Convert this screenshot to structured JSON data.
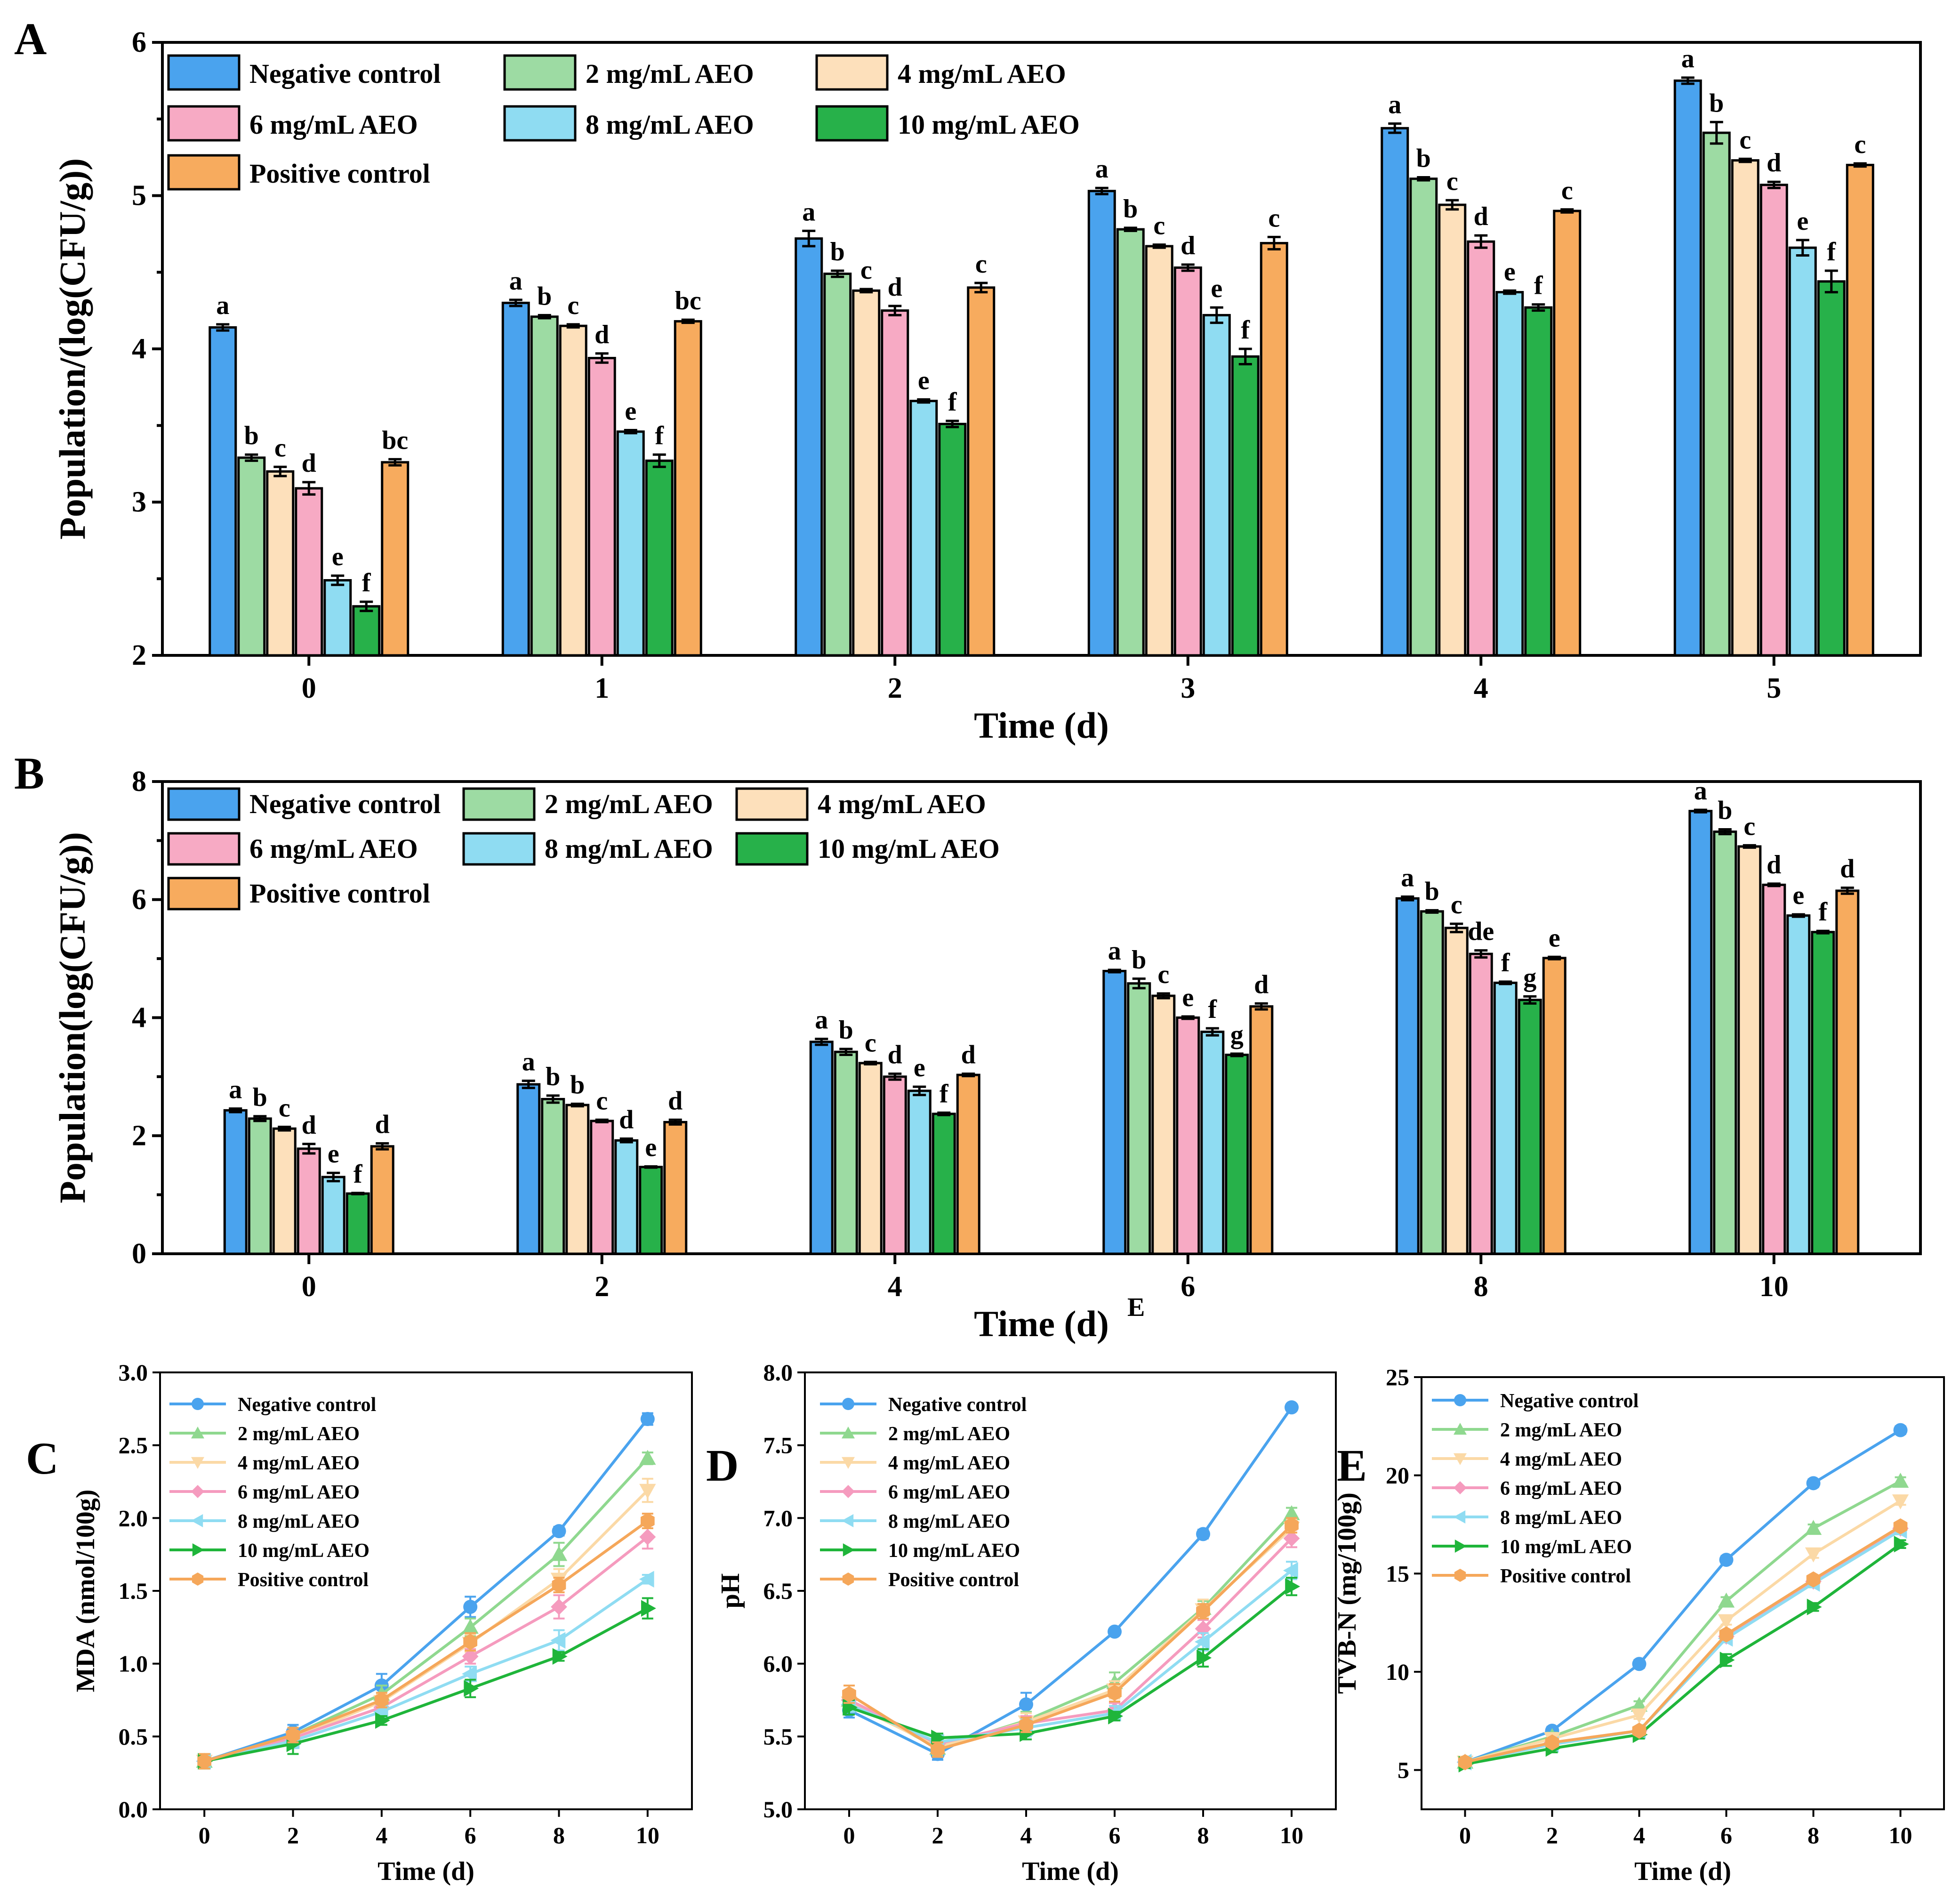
{
  "figure": {
    "panel_labels": [
      "A",
      "B",
      "C",
      "D",
      "E"
    ],
    "stray_label": "E"
  },
  "colors": {
    "Negative control": "#4aa3ee",
    "2 mg/mL AEO": "#9ddba3",
    "4 mg/mL AEO": "#fde0bb",
    "6 mg/mL AEO": "#f7aac4",
    "8 mg/mL AEO": "#8fdcf2",
    "10 mg/mL AEO": "#27b14a",
    "Positive control": "#f7ab5e"
  },
  "line_colors": {
    "Negative control": "#4aa3ee",
    "2 mg/mL AEO": "#8fd88f",
    "4 mg/mL AEO": "#fbd9a6",
    "6 mg/mL AEO": "#f59bbe",
    "8 mg/mL AEO": "#8fdcf2",
    "10 mg/mL AEO": "#1fb53a",
    "Positive control": "#f5a75a"
  },
  "chart_data": [
    {
      "id": "A",
      "type": "bar",
      "xlabel": "Time (d)",
      "ylabel": "Population/(log(CFU/g))",
      "ylim": [
        2,
        6
      ],
      "yticks": [
        "2",
        "3",
        "4",
        "5",
        "6"
      ],
      "categories": [
        "0",
        "1",
        "2",
        "3",
        "4",
        "5"
      ],
      "legend": [
        "Negative control",
        "2 mg/mL AEO",
        "4 mg/mL AEO",
        "6 mg/mL AEO",
        "8 mg/mL AEO",
        "10 mg/mL AEO",
        "Positive control"
      ],
      "series": [
        {
          "name": "Negative control",
          "values": [
            4.14,
            4.3,
            4.72,
            5.03,
            5.44,
            5.75
          ],
          "errors": [
            0.02,
            0.02,
            0.05,
            0.02,
            0.03,
            0.02
          ],
          "labels": [
            "a",
            "a",
            "a",
            "a",
            "a",
            "a"
          ]
        },
        {
          "name": "2 mg/mL AEO",
          "values": [
            3.29,
            4.21,
            4.49,
            4.78,
            5.11,
            5.41
          ],
          "errors": [
            0.02,
            0.01,
            0.02,
            0.01,
            0.01,
            0.07
          ],
          "labels": [
            "b",
            "b",
            "b",
            "b",
            "b",
            "b"
          ]
        },
        {
          "name": "4 mg/mL AEO",
          "values": [
            3.2,
            4.15,
            4.38,
            4.67,
            4.94,
            5.23
          ],
          "errors": [
            0.03,
            0.01,
            0.01,
            0.01,
            0.03,
            0.01
          ],
          "labels": [
            "c",
            "c",
            "c",
            "c",
            "c",
            "c"
          ]
        },
        {
          "name": "6 mg/mL AEO",
          "values": [
            3.09,
            3.94,
            4.25,
            4.53,
            4.7,
            5.07
          ],
          "errors": [
            0.04,
            0.03,
            0.03,
            0.02,
            0.04,
            0.02
          ],
          "labels": [
            "d",
            "d",
            "d",
            "d",
            "d",
            "d"
          ]
        },
        {
          "name": "8 mg/mL AEO",
          "values": [
            2.49,
            3.46,
            3.66,
            4.22,
            4.37,
            4.66
          ],
          "errors": [
            0.03,
            0.01,
            0.01,
            0.05,
            0.01,
            0.05
          ],
          "labels": [
            "e",
            "e",
            "e",
            "e",
            "e",
            "e"
          ]
        },
        {
          "name": "10 mg/mL AEO",
          "values": [
            2.32,
            3.27,
            3.51,
            3.95,
            4.27,
            4.44
          ],
          "errors": [
            0.03,
            0.04,
            0.02,
            0.05,
            0.02,
            0.07
          ],
          "labels": [
            "f",
            "f",
            "f",
            "f",
            "f",
            "f"
          ]
        },
        {
          "name": "Positive control",
          "values": [
            3.26,
            4.18,
            4.4,
            4.69,
            4.9,
            5.2
          ],
          "errors": [
            0.02,
            0.01,
            0.03,
            0.04,
            0.01,
            0.01
          ],
          "labels": [
            "bc",
            "bc",
            "c",
            "c",
            "c",
            "c"
          ]
        }
      ]
    },
    {
      "id": "B",
      "type": "bar",
      "xlabel": "Time (d)",
      "ylabel": "Population(log(CFU/g))",
      "ylim": [
        0,
        8
      ],
      "yticks": [
        "0",
        "2",
        "4",
        "6",
        "8"
      ],
      "categories": [
        "0",
        "2",
        "4",
        "6",
        "8",
        "10"
      ],
      "legend": [
        "Negative control",
        "2 mg/mL AEO",
        "4 mg/mL AEO",
        "6 mg/mL AEO",
        "8 mg/mL AEO",
        "10 mg/mL AEO",
        "Positive control"
      ],
      "series": [
        {
          "name": "Negative control",
          "values": [
            2.43,
            2.87,
            3.59,
            4.79,
            6.02,
            7.5
          ],
          "errors": [
            0.03,
            0.06,
            0.05,
            0.02,
            0.03,
            0.02
          ],
          "labels": [
            "a",
            "a",
            "a",
            "a",
            "a",
            "a"
          ]
        },
        {
          "name": "2 mg/mL AEO",
          "values": [
            2.29,
            2.62,
            3.42,
            4.58,
            5.8,
            7.15
          ],
          "errors": [
            0.04,
            0.06,
            0.05,
            0.08,
            0.02,
            0.04
          ],
          "labels": [
            "b",
            "b",
            "b",
            "b",
            "b",
            "b"
          ]
        },
        {
          "name": "4 mg/mL AEO",
          "values": [
            2.12,
            2.52,
            3.23,
            4.37,
            5.52,
            6.9
          ],
          "errors": [
            0.03,
            0.02,
            0.02,
            0.04,
            0.07,
            0.02
          ],
          "labels": [
            "c",
            "b",
            "c",
            "c",
            "c",
            "c"
          ]
        },
        {
          "name": "6 mg/mL AEO",
          "values": [
            1.78,
            2.25,
            3.0,
            4.0,
            5.08,
            6.25
          ],
          "errors": [
            0.08,
            0.02,
            0.05,
            0.02,
            0.06,
            0.02
          ],
          "labels": [
            "d",
            "c",
            "d",
            "e",
            "de",
            "d"
          ]
        },
        {
          "name": "8 mg/mL AEO",
          "values": [
            1.3,
            1.92,
            2.76,
            3.76,
            4.59,
            5.73
          ],
          "errors": [
            0.07,
            0.03,
            0.07,
            0.06,
            0.02,
            0.02
          ],
          "labels": [
            "e",
            "d",
            "e",
            "f",
            "f",
            "e"
          ]
        },
        {
          "name": "10 mg/mL AEO",
          "values": [
            1.02,
            1.47,
            2.37,
            3.37,
            4.3,
            5.45
          ],
          "errors": [
            0.01,
            0.01,
            0.02,
            0.02,
            0.06,
            0.02
          ],
          "labels": [
            "f",
            "e",
            "f",
            "g",
            "g",
            "f"
          ]
        },
        {
          "name": "Positive control",
          "values": [
            1.82,
            2.23,
            3.03,
            4.19,
            5.01,
            6.15
          ],
          "errors": [
            0.05,
            0.04,
            0.02,
            0.05,
            0.02,
            0.05
          ],
          "labels": [
            "d",
            "d",
            "d",
            "d",
            "e",
            "d"
          ]
        }
      ]
    },
    {
      "id": "C",
      "type": "line",
      "xlabel": "Time (d)",
      "ylabel": "MDA (nmol/100g)",
      "ylim": [
        0.0,
        3.0
      ],
      "yticks": [
        "0.0",
        "0.5",
        "1.0",
        "1.5",
        "2.0",
        "2.5",
        "3.0"
      ],
      "xlim": [
        -1,
        11
      ],
      "xticks": [
        "0",
        "2",
        "4",
        "6",
        "8",
        "10"
      ],
      "x": [
        0,
        2,
        4,
        6,
        8,
        10
      ],
      "legend": [
        "Negative control",
        "2 mg/mL AEO",
        "4 mg/mL AEO",
        "6 mg/mL AEO",
        "8 mg/mL AEO",
        "10 mg/mL AEO",
        "Positive control"
      ],
      "series": [
        {
          "name": "Negative control",
          "marker": "circle",
          "values": [
            0.33,
            0.53,
            0.85,
            1.39,
            1.91,
            2.68
          ],
          "errors": [
            0.05,
            0.05,
            0.08,
            0.07,
            0.03,
            0.04
          ]
        },
        {
          "name": "2 mg/mL AEO",
          "marker": "triangle-up",
          "values": [
            0.33,
            0.51,
            0.79,
            1.25,
            1.75,
            2.41
          ],
          "errors": [
            0.05,
            0.05,
            0.06,
            0.06,
            0.08,
            0.04
          ]
        },
        {
          "name": "4 mg/mL AEO",
          "marker": "triangle-down",
          "values": [
            0.33,
            0.49,
            0.74,
            1.14,
            1.58,
            2.19
          ],
          "errors": [
            0.05,
            0.05,
            0.05,
            0.06,
            0.07,
            0.08
          ]
        },
        {
          "name": "6 mg/mL AEO",
          "marker": "diamond",
          "values": [
            0.33,
            0.49,
            0.7,
            1.05,
            1.39,
            1.87
          ],
          "errors": [
            0.05,
            0.05,
            0.05,
            0.05,
            0.08,
            0.08
          ]
        },
        {
          "name": "8 mg/mL AEO",
          "marker": "triangle-left",
          "values": [
            0.33,
            0.47,
            0.67,
            0.93,
            1.16,
            1.58
          ],
          "errors": [
            0.05,
            0.05,
            0.05,
            0.05,
            0.07,
            0.03
          ]
        },
        {
          "name": "10 mg/mL AEO",
          "marker": "triangle-right",
          "values": [
            0.33,
            0.45,
            0.61,
            0.83,
            1.05,
            1.38
          ],
          "errors": [
            0.05,
            0.07,
            0.03,
            0.06,
            0.03,
            0.07
          ]
        },
        {
          "name": "Positive control",
          "marker": "hexagon",
          "values": [
            0.33,
            0.51,
            0.75,
            1.15,
            1.54,
            1.98
          ],
          "errors": [
            0.05,
            0.05,
            0.05,
            0.06,
            0.05,
            0.05
          ]
        }
      ]
    },
    {
      "id": "D",
      "type": "line",
      "xlabel": "Time (d)",
      "ylabel": "pH",
      "ylim": [
        5.0,
        8.0
      ],
      "yticks": [
        "5.0",
        "5.5",
        "6.0",
        "6.5",
        "7.0",
        "7.5",
        "8.0"
      ],
      "xlim": [
        -1,
        11
      ],
      "xticks": [
        "0",
        "2",
        "4",
        "6",
        "8",
        "10"
      ],
      "x": [
        0,
        2,
        4,
        6,
        8,
        10
      ],
      "legend": [
        "Negative control",
        "2 mg/mL AEO",
        "4 mg/mL AEO",
        "6 mg/mL AEO",
        "8 mg/mL AEO",
        "10 mg/mL AEO",
        "Positive control"
      ],
      "series": [
        {
          "name": "Negative control",
          "marker": "circle",
          "values": [
            5.68,
            5.38,
            5.72,
            6.22,
            6.89,
            7.76
          ],
          "errors": [
            0.05,
            0.04,
            0.08,
            0.02,
            0.03,
            0.02
          ]
        },
        {
          "name": "2 mg/mL AEO",
          "marker": "triangle-up",
          "values": [
            5.75,
            5.42,
            5.61,
            5.87,
            6.38,
            7.03
          ],
          "errors": [
            0.06,
            0.05,
            0.06,
            0.07,
            0.05,
            0.04
          ]
        },
        {
          "name": "4 mg/mL AEO",
          "marker": "triangle-down",
          "values": [
            5.73,
            5.43,
            5.6,
            5.82,
            6.37,
            6.93
          ],
          "errors": [
            0.06,
            0.05,
            0.06,
            0.06,
            0.07,
            0.06
          ]
        },
        {
          "name": "6 mg/mL AEO",
          "marker": "diamond",
          "values": [
            5.75,
            5.45,
            5.59,
            5.68,
            6.24,
            6.86
          ],
          "errors": [
            0.05,
            0.05,
            0.05,
            0.05,
            0.06,
            0.06
          ]
        },
        {
          "name": "8 mg/mL AEO",
          "marker": "triangle-left",
          "values": [
            5.72,
            5.46,
            5.56,
            5.66,
            6.15,
            6.64
          ],
          "errors": [
            0.05,
            0.05,
            0.06,
            0.05,
            0.06,
            0.06
          ]
        },
        {
          "name": "10 mg/mL AEO",
          "marker": "triangle-right",
          "values": [
            5.7,
            5.49,
            5.52,
            5.64,
            6.04,
            6.53
          ],
          "errors": [
            0.05,
            0.03,
            0.04,
            0.03,
            0.06,
            0.06
          ]
        },
        {
          "name": "Positive control",
          "marker": "hexagon",
          "values": [
            5.79,
            5.41,
            5.58,
            5.8,
            6.36,
            6.95
          ],
          "errors": [
            0.06,
            0.05,
            0.05,
            0.06,
            0.05,
            0.05
          ]
        }
      ]
    },
    {
      "id": "E",
      "type": "line",
      "xlabel": "Time (d)",
      "ylabel": "TVB-N (mg/100g)",
      "ylim": [
        3,
        25
      ],
      "yticks": [
        "5",
        "10",
        "15",
        "20",
        "25"
      ],
      "xlim": [
        -1,
        11
      ],
      "xticks": [
        "0",
        "2",
        "4",
        "6",
        "8",
        "10"
      ],
      "x": [
        0,
        2,
        4,
        6,
        8,
        10
      ],
      "legend": [
        "Negative control",
        "2 mg/mL AEO",
        "4 mg/mL AEO",
        "6 mg/mL AEO",
        "8 mg/mL AEO",
        "10 mg/mL AEO",
        "Positive control"
      ],
      "series": [
        {
          "name": "Negative control",
          "marker": "circle",
          "values": [
            5.4,
            7.0,
            10.4,
            15.7,
            19.6,
            22.3
          ],
          "errors": [
            0.2,
            0.2,
            0.2,
            0.2,
            0.2,
            0.2
          ]
        },
        {
          "name": "2 mg/mL AEO",
          "marker": "triangle-up",
          "values": [
            5.4,
            6.7,
            8.3,
            13.6,
            17.3,
            19.7
          ],
          "errors": [
            0.2,
            0.2,
            0.2,
            0.2,
            0.2,
            0.2
          ]
        },
        {
          "name": "4 mg/mL AEO",
          "marker": "triangle-down",
          "values": [
            5.4,
            6.6,
            7.8,
            12.6,
            16.0,
            18.7
          ],
          "errors": [
            0.2,
            0.2,
            0.2,
            0.2,
            0.2,
            0.2
          ]
        },
        {
          "name": "6 mg/mL AEO",
          "marker": "diamond",
          "values": [
            5.4,
            6.4,
            7.0,
            11.8,
            14.6,
            17.3
          ],
          "errors": [
            0.2,
            0.2,
            0.2,
            0.2,
            0.2,
            0.2
          ]
        },
        {
          "name": "8 mg/mL AEO",
          "marker": "triangle-left",
          "values": [
            5.4,
            6.3,
            7.0,
            11.7,
            14.5,
            17.2
          ],
          "errors": [
            0.2,
            0.2,
            0.2,
            0.2,
            0.2,
            0.2
          ]
        },
        {
          "name": "10 mg/mL AEO",
          "marker": "triangle-right",
          "values": [
            5.3,
            6.1,
            6.8,
            10.6,
            13.3,
            16.5
          ],
          "errors": [
            0.2,
            0.2,
            0.2,
            0.3,
            0.2,
            0.2
          ]
        },
        {
          "name": "Positive control",
          "marker": "hexagon",
          "values": [
            5.4,
            6.4,
            7.0,
            11.9,
            14.7,
            17.4
          ],
          "errors": [
            0.2,
            0.2,
            0.2,
            0.2,
            0.2,
            0.2
          ]
        }
      ]
    }
  ]
}
